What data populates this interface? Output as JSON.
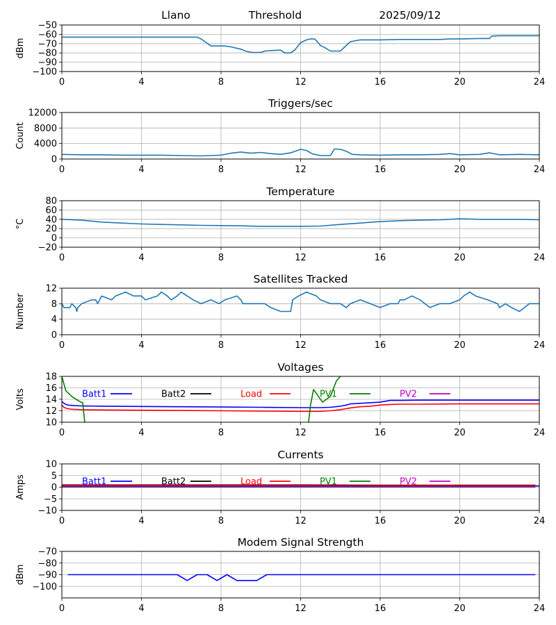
{
  "figure": {
    "header": {
      "station": "Llano",
      "label": "Threshold",
      "date": "2025/09/12"
    }
  },
  "colors": {
    "default_line": "#1f77b4",
    "batt1": "#0000ff",
    "batt2": "#000000",
    "load": "#ff0000",
    "pv1": "#008000",
    "pv2": "#bf00bf",
    "grid": "#b0b0b0"
  },
  "chart_data": [
    {
      "id": "threshold",
      "type": "line",
      "title": "",
      "ylabel": "dBm",
      "xlim": [
        0,
        24
      ],
      "ylim": [
        -100,
        -50
      ],
      "xticks": [
        0,
        4,
        8,
        12,
        16,
        20,
        24
      ],
      "yticks": [
        -100,
        -90,
        -80,
        -70,
        -60,
        -50
      ],
      "grid": true,
      "series": [
        {
          "color": "#1f77b4",
          "x": [
            0,
            2,
            4,
            6,
            6.5,
            6.8,
            7.0,
            7.2,
            7.5,
            8,
            8.2,
            8.5,
            9.0,
            9.3,
            9.6,
            10,
            10.2,
            10.5,
            11,
            11.2,
            11.5,
            11.7,
            12,
            12.3,
            12.5,
            12.7,
            12.8,
            13,
            13.2,
            13.5,
            14,
            14.3,
            14.5,
            15,
            15.5,
            16,
            17,
            18,
            19,
            19.5,
            20,
            21,
            21.5,
            21.6,
            22,
            23,
            24
          ],
          "y": [
            -63,
            -63,
            -63,
            -63,
            -63,
            -63,
            -65,
            -68,
            -72.5,
            -72.5,
            -72.5,
            -73.5,
            -76,
            -78.5,
            -79.5,
            -79.5,
            -78,
            -77.5,
            -77,
            -80,
            -80,
            -77,
            -69,
            -66,
            -65,
            -65,
            -67,
            -72,
            -74,
            -78,
            -78,
            -72,
            -68,
            -66,
            -66,
            -66,
            -65.5,
            -65.5,
            -65.5,
            -65,
            -65,
            -64.5,
            -64.5,
            -62,
            -61.5,
            -61.5,
            -61.5
          ]
        }
      ]
    },
    {
      "id": "triggers",
      "type": "line",
      "title": "Triggers/sec",
      "ylabel": "Count",
      "xlim": [
        0,
        24
      ],
      "ylim": [
        0,
        12000
      ],
      "xticks": [
        0,
        4,
        8,
        12,
        16,
        20,
        24
      ],
      "yticks": [
        0,
        4000,
        8000,
        12000
      ],
      "grid": true,
      "series": [
        {
          "color": "#1f77b4",
          "x": [
            0,
            1,
            2,
            3,
            4,
            5,
            6,
            7,
            7.5,
            8,
            8.5,
            9,
            9.5,
            10,
            10.5,
            11,
            11.5,
            12,
            12.3,
            12.6,
            13,
            13.5,
            13.7,
            14,
            14.3,
            14.6,
            15,
            16,
            17,
            18,
            19,
            19.5,
            20,
            21,
            21.5,
            22,
            23,
            24
          ],
          "y": [
            1200,
            1100,
            1100,
            1000,
            1000,
            1000,
            900,
            800,
            900,
            1000,
            1500,
            1800,
            1500,
            1700,
            1400,
            1200,
            1600,
            2500,
            2200,
            1300,
            900,
            900,
            2600,
            2500,
            2000,
            1200,
            1100,
            1000,
            1100,
            1100,
            1200,
            1400,
            1100,
            1200,
            1600,
            1100,
            1200,
            1100
          ]
        }
      ]
    },
    {
      "id": "temperature",
      "type": "line",
      "title": "Temperature",
      "ylabel": "°C",
      "xlim": [
        0,
        24
      ],
      "ylim": [
        -20,
        80
      ],
      "xticks": [
        0,
        4,
        8,
        12,
        16,
        20,
        24
      ],
      "yticks": [
        -20,
        0,
        20,
        40,
        60,
        80
      ],
      "grid": true,
      "series": [
        {
          "color": "#1f77b4",
          "x": [
            0,
            1,
            2,
            3,
            4,
            5,
            6,
            7,
            8,
            9,
            10,
            11,
            12,
            13,
            14,
            15,
            16,
            17,
            18,
            19,
            20,
            21,
            22,
            23,
            24
          ],
          "y": [
            40,
            38,
            34,
            32,
            30,
            29,
            28,
            27,
            26.5,
            26,
            25,
            25,
            25,
            25.5,
            29,
            32,
            35,
            37,
            38,
            39,
            41,
            40,
            40,
            40,
            39
          ]
        }
      ]
    },
    {
      "id": "satellites",
      "type": "line",
      "title": "Satellites Tracked",
      "ylabel": "Number",
      "xlim": [
        0,
        24
      ],
      "ylim": [
        0,
        12
      ],
      "xticks": [
        0,
        4,
        8,
        12,
        16,
        20,
        24
      ],
      "yticks": [
        0,
        4,
        8,
        12
      ],
      "grid": true,
      "series": [
        {
          "color": "#1f77b4",
          "x": [
            0,
            0.1,
            0.4,
            0.5,
            0.7,
            0.75,
            0.8,
            1.0,
            1.5,
            1.7,
            1.8,
            2.0,
            2.5,
            2.7,
            3.2,
            3.6,
            4.0,
            4.2,
            4.8,
            5.0,
            5.3,
            5.5,
            5.8,
            6.0,
            6.6,
            7.0,
            7.5,
            7.9,
            8.2,
            8.8,
            9.0,
            9.1,
            9.4,
            10.2,
            10.5,
            11.0,
            11.5,
            11.6,
            11.9,
            12.3,
            12.8,
            13.0,
            13.5,
            14.0,
            14.3,
            14.5,
            15.0,
            15.5,
            16.0,
            16.5,
            16.9,
            17.0,
            17.2,
            17.6,
            18.0,
            18.5,
            19.0,
            19.5,
            20.0,
            20.2,
            20.5,
            20.8,
            21.4,
            21.9,
            22.0,
            22.3,
            22.6,
            23.0,
            23.5,
            24.0
          ],
          "y": [
            8,
            7,
            7,
            8,
            7,
            6,
            7,
            8,
            9,
            9,
            8,
            10,
            9,
            10,
            11,
            10,
            10,
            9,
            10,
            11,
            10,
            9,
            10,
            11,
            9,
            8,
            9,
            8,
            9,
            10,
            9,
            8,
            8,
            8,
            7,
            6,
            6,
            9,
            10,
            11,
            10,
            9,
            8,
            8,
            7,
            8,
            9,
            8,
            7,
            8,
            8,
            9,
            9,
            10,
            9,
            7,
            8,
            8,
            9,
            10,
            11,
            10,
            9,
            8,
            7,
            8,
            7,
            6,
            8,
            8
          ]
        }
      ]
    },
    {
      "id": "voltages",
      "type": "line",
      "title": "Voltages",
      "ylabel": "Volts",
      "xlim": [
        0,
        24
      ],
      "ylim": [
        10,
        18
      ],
      "xticks": [
        0,
        4,
        8,
        12,
        16,
        20,
        24
      ],
      "yticks": [
        10,
        12,
        14,
        16,
        18
      ],
      "grid": true,
      "legend": "top-inline",
      "series": [
        {
          "name": "Batt1",
          "color": "#0000ff",
          "x": [
            0,
            0.15,
            0.3,
            0.6,
            1,
            2,
            4,
            6,
            8,
            10,
            12,
            13,
            13.5,
            14,
            14.3,
            14.5,
            15,
            16,
            16.5,
            17,
            18,
            20,
            22,
            24
          ],
          "y": [
            13.6,
            13.2,
            13.0,
            12.9,
            12.85,
            12.8,
            12.75,
            12.7,
            12.65,
            12.6,
            12.55,
            12.55,
            12.6,
            12.8,
            13.0,
            13.2,
            13.3,
            13.5,
            13.8,
            13.8,
            13.85,
            13.85,
            13.85,
            13.85
          ]
        },
        {
          "name": "Batt2",
          "color": "#000000",
          "x": [],
          "y": []
        },
        {
          "name": "Load",
          "color": "#ff0000",
          "x": [
            0,
            0.1,
            0.25,
            0.4,
            0.6,
            1,
            2,
            4,
            6,
            8,
            10,
            12,
            13,
            13.5,
            14,
            14.5,
            15,
            15.5,
            16,
            16.5,
            17,
            18,
            20,
            22,
            24
          ],
          "y": [
            13.0,
            12.6,
            12.4,
            12.3,
            12.25,
            12.2,
            12.15,
            12.1,
            12.05,
            12.0,
            11.95,
            11.9,
            11.9,
            12.0,
            12.2,
            12.5,
            12.7,
            12.8,
            13.0,
            13.1,
            13.15,
            13.15,
            13.2,
            13.2,
            13.2
          ]
        },
        {
          "name": "PV1",
          "color": "#008000",
          "x": [
            0,
            0.2,
            0.5,
            0.9,
            1.05,
            1.15,
            1.25,
            12.25,
            12.4,
            12.5,
            12.65,
            12.8,
            13.1,
            13.5,
            13.8,
            14.0
          ],
          "y": [
            18.0,
            15.5,
            14.5,
            13.6,
            13.4,
            10.0,
            8.0,
            8.0,
            10.0,
            13.0,
            15.7,
            15.0,
            13.5,
            14.5,
            17.2,
            18.0
          ]
        },
        {
          "name": "PV2",
          "color": "#bf00bf",
          "x": [],
          "y": []
        }
      ]
    },
    {
      "id": "currents",
      "type": "line",
      "title": "Currents",
      "ylabel": "Amps",
      "xlim": [
        0,
        24
      ],
      "ylim": [
        -10,
        10
      ],
      "xticks": [
        0,
        4,
        8,
        12,
        16,
        20,
        24
      ],
      "yticks": [
        -10,
        -5,
        0,
        5,
        10
      ],
      "grid": true,
      "legend": "top-inline",
      "series": [
        {
          "name": "Batt1",
          "color": "#0000ff",
          "x": [
            0,
            24
          ],
          "y": [
            0.5,
            0.5
          ]
        },
        {
          "name": "Batt2",
          "color": "#000000",
          "x": [],
          "y": []
        },
        {
          "name": "Load",
          "color": "#ff0000",
          "x": [
            0,
            4,
            8,
            12,
            16,
            20,
            23.8
          ],
          "y": [
            1.0,
            1.0,
            1.0,
            1.0,
            0.9,
            0.9,
            0.9
          ]
        },
        {
          "name": "PV1",
          "color": "#008000",
          "x": [
            0,
            23.8
          ],
          "y": [
            0.3,
            0.3
          ]
        },
        {
          "name": "PV2",
          "color": "#bf00bf",
          "x": [
            0,
            23.8
          ],
          "y": [
            0.0,
            0.0
          ]
        }
      ]
    },
    {
      "id": "modem",
      "type": "line",
      "title": "Modem Signal Strength",
      "ylabel": "dBm",
      "xlim": [
        0,
        24
      ],
      "ylim": [
        -110,
        -70
      ],
      "xticks": [
        0,
        4,
        8,
        12,
        16,
        20,
        24
      ],
      "yticks": [
        -100,
        -90,
        -80,
        -70
      ],
      "grid": true,
      "series": [
        {
          "color": "#0000ff",
          "x": [
            0.3,
            5.8,
            6.3,
            6.8,
            7.3,
            7.8,
            8.3,
            8.8,
            9.8,
            10.3,
            23.8
          ],
          "y": [
            -90,
            -90,
            -95,
            -90,
            -90,
            -95,
            -90,
            -95,
            -95,
            -90,
            -90
          ]
        }
      ]
    }
  ]
}
